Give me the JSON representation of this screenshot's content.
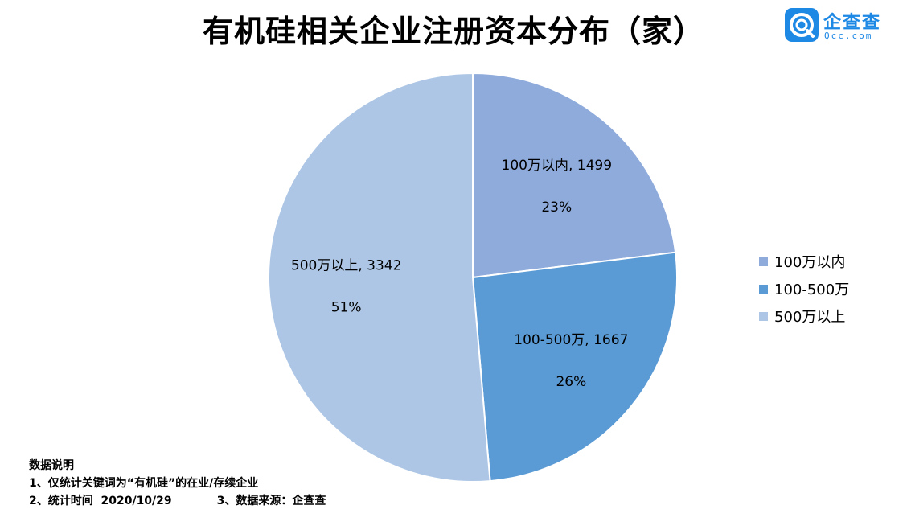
{
  "header": {
    "title": "有机硅相关企业注册资本分布（家）"
  },
  "logo": {
    "name": "企查查",
    "domain": "Qcc.com",
    "icon": "qcc-logo-icon"
  },
  "chart_data": {
    "type": "pie",
    "title": "有机硅相关企业注册资本分布（家）",
    "start_angle_deg": 0,
    "direction": "clockwise",
    "slices": [
      {
        "label": "100万以内",
        "value": 1499,
        "percent_label": "23%",
        "color": "#8eabdc",
        "data_label": "100万以内, 1499"
      },
      {
        "label": "100-500万",
        "value": 1667,
        "percent_label": "26%",
        "color": "#5b9bd5",
        "data_label": "100-500万, 1667"
      },
      {
        "label": "500万以上",
        "value": 3342,
        "percent_label": "51%",
        "color": "#adc6e5",
        "data_label": "500万以上, 3342"
      }
    ],
    "legend_position": "right"
  },
  "notes": {
    "heading": "数据说明",
    "line1": "1、仅统计关键词为“有机硅”的在业/存续企业",
    "line2a": "2、统计时间  2020/10/29",
    "line2b": "3、数据来源：企查查"
  }
}
